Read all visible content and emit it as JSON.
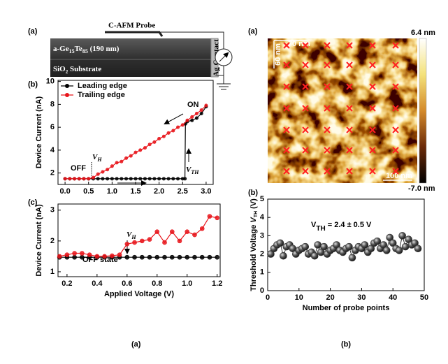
{
  "schematic": {
    "label": "(a)",
    "probe": "C-AFM Probe",
    "film": [
      "a-Ge",
      "15",
      "Te",
      "85",
      " (190 nm)"
    ],
    "substrate": [
      "SiO",
      "2",
      " Substrate"
    ],
    "contact": "Ag Contact"
  },
  "afm": {
    "label": "(a)",
    "cbar_max": "6.4 nm",
    "cbar_min": "-7.0 nm",
    "scale_x": "70 nm",
    "scale_y": "60 nm",
    "scale_bar": "100 nm"
  },
  "captions": [
    "(a)",
    "(b)"
  ],
  "chart_data": [
    {
      "type": "line",
      "label": "(b)",
      "ylabel": "Device Current (nA)",
      "xlim": [
        -0.15,
        3.15
      ],
      "ylim": [
        1,
        10.1
      ],
      "xticks": [
        {
          "value": 0,
          "label": "0.0"
        },
        0.5,
        {
          "value": 1,
          "label": "1.0"
        },
        1.5,
        {
          "value": 2,
          "label": "2.0"
        },
        2.5,
        {
          "value": 3,
          "label": "3.0"
        }
      ],
      "yticks": [
        2,
        4,
        6,
        8,
        10
      ],
      "legend": "upper left",
      "annotations": {
        "on": "ON",
        "off": "OFF",
        "vh": [
          "V",
          "H"
        ],
        "vth": [
          "V",
          "TH"
        ]
      },
      "series": [
        {
          "name": "Leading edge",
          "color": "#000000",
          "x": [
            0,
            0.1,
            0.2,
            0.3,
            0.4,
            0.5,
            0.6,
            0.7,
            0.8,
            0.9,
            1.0,
            1.1,
            1.2,
            1.3,
            1.4,
            1.5,
            1.6,
            1.7,
            1.8,
            1.9,
            2.0,
            2.1,
            2.2,
            2.3,
            2.4,
            2.5,
            2.55,
            2.56,
            2.6,
            2.7,
            2.8,
            2.9,
            3.0
          ],
          "values": [
            1.5,
            1.5,
            1.5,
            1.5,
            1.5,
            1.5,
            1.5,
            1.5,
            1.5,
            1.5,
            1.5,
            1.5,
            1.5,
            1.5,
            1.5,
            1.5,
            1.5,
            1.5,
            1.5,
            1.5,
            1.5,
            1.5,
            1.5,
            1.5,
            1.5,
            1.5,
            1.5,
            6.3,
            6.5,
            6.6,
            6.8,
            7.2,
            7.8
          ]
        },
        {
          "name": "Trailing edge",
          "color": "#e8151b",
          "x": [
            0,
            0.1,
            0.2,
            0.3,
            0.4,
            0.5,
            0.6,
            0.7,
            0.8,
            0.9,
            1.0,
            1.1,
            1.2,
            1.3,
            1.4,
            1.5,
            1.6,
            1.7,
            1.8,
            1.9,
            2.0,
            2.1,
            2.2,
            2.3,
            2.4,
            2.5,
            2.6,
            2.7,
            2.8,
            2.9,
            3.0
          ],
          "values": [
            1.5,
            1.5,
            1.5,
            1.5,
            1.5,
            1.5,
            1.6,
            1.9,
            2.1,
            2.3,
            2.6,
            2.9,
            3.0,
            3.3,
            3.5,
            3.8,
            4.0,
            4.2,
            4.5,
            4.7,
            5.0,
            5.2,
            5.5,
            5.7,
            6.0,
            6.2,
            6.6,
            6.9,
            7.2,
            7.5,
            7.9
          ]
        }
      ]
    },
    {
      "type": "line",
      "label": "(c)",
      "xlabel": "Applied Voltage (V)",
      "ylabel": "Device Current (nA)",
      "xlim": [
        0.14,
        1.22
      ],
      "ylim": [
        0.84,
        3.2
      ],
      "xticks": [
        0.2,
        0.4,
        0.6,
        0.8,
        {
          "value": 1,
          "label": "1.0"
        },
        1.2
      ],
      "yticks": [
        1,
        2,
        3
      ],
      "annotations": {
        "off": "OFF state",
        "vh": [
          "V",
          "H"
        ]
      },
      "x": [
        0.15,
        0.2,
        0.25,
        0.3,
        0.35,
        0.4,
        0.45,
        0.5,
        0.55,
        0.6,
        0.65,
        0.7,
        0.75,
        0.8,
        0.85,
        0.9,
        0.95,
        1.0,
        1.05,
        1.1,
        1.15,
        1.2
      ],
      "series": [
        {
          "color": "#000000",
          "values": [
            1.47,
            1.47,
            1.47,
            1.47,
            1.47,
            1.47,
            1.47,
            1.47,
            1.47,
            1.47,
            1.47,
            1.47,
            1.47,
            1.47,
            1.47,
            1.47,
            1.47,
            1.47,
            1.47,
            1.47,
            1.47,
            1.47
          ]
        },
        {
          "color": "#e8151b",
          "values": [
            1.5,
            1.55,
            1.6,
            1.6,
            1.55,
            1.5,
            1.5,
            1.52,
            1.55,
            1.9,
            1.95,
            2.0,
            2.05,
            2.3,
            1.95,
            2.3,
            2.0,
            2.3,
            2.2,
            2.4,
            2.8,
            2.75
          ]
        }
      ]
    },
    {
      "type": "line",
      "label": "(b)",
      "xlabel": "Number of probe points",
      "ylabel": [
        "Threshold Voltage ",
        "V",
        "TH",
        " (V)"
      ],
      "xlim": [
        0,
        50
      ],
      "ylim": [
        0,
        5
      ],
      "xticks": [
        0,
        10,
        20,
        30,
        40,
        50
      ],
      "yticks": [
        0,
        1,
        2,
        3,
        4,
        5
      ],
      "annotations": {
        "vth": [
          "V",
          "TH",
          " = 2.4 ± 0.5 V"
        ]
      },
      "x": [
        1,
        2,
        3,
        4,
        5,
        6,
        7,
        8,
        9,
        10,
        11,
        12,
        13,
        14,
        15,
        16,
        17,
        18,
        19,
        20,
        21,
        22,
        23,
        24,
        25,
        26,
        27,
        28,
        29,
        30,
        31,
        32,
        33,
        34,
        35,
        36,
        37,
        38,
        39,
        40,
        41,
        42,
        43,
        44,
        45,
        46,
        47,
        48
      ],
      "series": [
        {
          "color": "#333333",
          "values": [
            2.0,
            2.3,
            2.5,
            2.6,
            1.9,
            2.4,
            2.5,
            2.3,
            2.0,
            2.2,
            2.3,
            2.4,
            2.0,
            2.1,
            1.9,
            2.5,
            2.1,
            2.4,
            2.0,
            2.2,
            2.3,
            2.5,
            2.2,
            2.1,
            2.3,
            2.4,
            1.8,
            2.2,
            2.4,
            2.3,
            2.5,
            2.1,
            2.3,
            2.6,
            2.7,
            2.3,
            2.5,
            2.2,
            2.9,
            2.6,
            2.3,
            2.2,
            3.0,
            2.4,
            2.8,
            2.5,
            2.6,
            2.3
          ]
        }
      ]
    }
  ]
}
